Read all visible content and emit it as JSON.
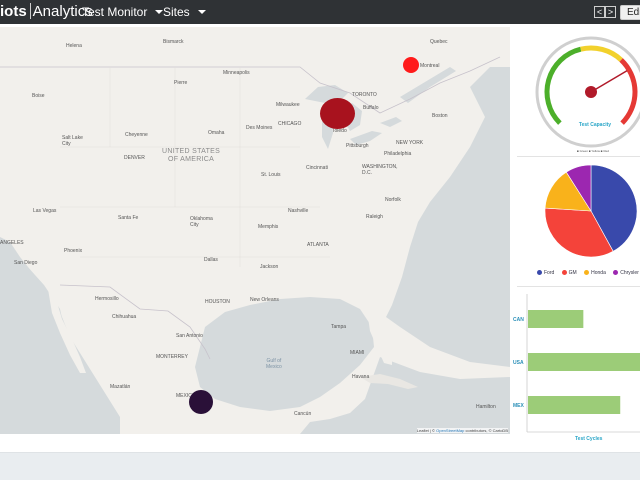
{
  "header": {
    "brand_part1": "iots",
    "brand_part2": "Analytics",
    "menus": [
      {
        "label": "Test Monitor"
      },
      {
        "label": "Sites"
      }
    ],
    "prev_icon": "chevron-left-icon",
    "next_icon": "chevron-right-icon",
    "prev_glyph": "<",
    "next_glyph": ">",
    "edit_label": "Edit"
  },
  "map": {
    "country_labels": [
      "UNITED STATES",
      "OF AMERICA"
    ],
    "sea_labels": [
      "Gulf of",
      "Mexico"
    ],
    "cities": [
      "Helena",
      "Bismarck",
      "Quebec",
      "Minneapolis",
      "Pierre",
      "Montreal",
      "Boise",
      "TORONTO",
      "Milwaukee",
      "Buffalo",
      "Boston",
      "Salt Lake City",
      "Des Moines",
      "CHICAGO",
      "Cheyenne",
      "Omaha",
      "Toledo",
      "Pittsburgh",
      "NEW YORK",
      "DENVER",
      "Philadelphia",
      "WASHINGTON, D.C.",
      "Cincinnati",
      "St. Louis",
      "Las Vegas",
      "Santa Fe",
      "Nashville",
      "Norfolk",
      "Raleigh",
      "ANGELES",
      "Oklahoma City",
      "Memphis",
      "Phoenix",
      "ATLANTA",
      "San Diego",
      "Dallas",
      "Jackson",
      "Hermosillo",
      "HOUSTON",
      "New Orleans",
      "Chihuahua",
      "San Antonio",
      "Tampa",
      "MIAMI",
      "MONTERREY",
      "Havana",
      "Mazatlán",
      "MEXICO",
      "Cancún",
      "Hamilton"
    ],
    "attribution_prefix": "Leaflet | © ",
    "attribution_link": "OpenStreetMap",
    "attribution_suffix": " contributors, © CartoDB",
    "markers": [
      {
        "name": "marker-toronto",
        "color": "#ff1a1a"
      },
      {
        "name": "marker-chicago",
        "color": "#a8121e"
      },
      {
        "name": "marker-mexico",
        "color": "#2a1038"
      }
    ]
  },
  "gauge": {
    "title": "Test Capacity",
    "legend": "■ Green ■ Yellow ■ Red",
    "value_fraction": 0.72,
    "colors": {
      "green": "#4caf2a",
      "yellow": "#f2d12c",
      "red": "#e53935",
      "needle": "#b11a2a"
    }
  },
  "pie": {
    "legend": [
      {
        "label": "Ford",
        "color": "#3949ab"
      },
      {
        "label": "GM",
        "color": "#f4433a"
      },
      {
        "label": "Honda",
        "color": "#f9b21b"
      },
      {
        "label": "Chrysler",
        "color": "#9c27b0"
      }
    ]
  },
  "chart_data": [
    {
      "type": "pie",
      "categories": [
        "Ford",
        "GM",
        "Honda",
        "Chrysler"
      ],
      "values": [
        42,
        34,
        15,
        9
      ],
      "colors": [
        "#3949ab",
        "#f4433a",
        "#f9b21b",
        "#9c27b0"
      ],
      "legend": "bottom"
    },
    {
      "type": "bar",
      "orientation": "horizontal",
      "categories": [
        "CAN",
        "USA",
        "MEX"
      ],
      "values": [
        42,
        85,
        70
      ],
      "xlabel": "Test Cycles",
      "xlim": [
        0,
        85
      ],
      "color": "#9ccc78"
    }
  ],
  "bars": {
    "xlabel": "Test Cycles"
  }
}
